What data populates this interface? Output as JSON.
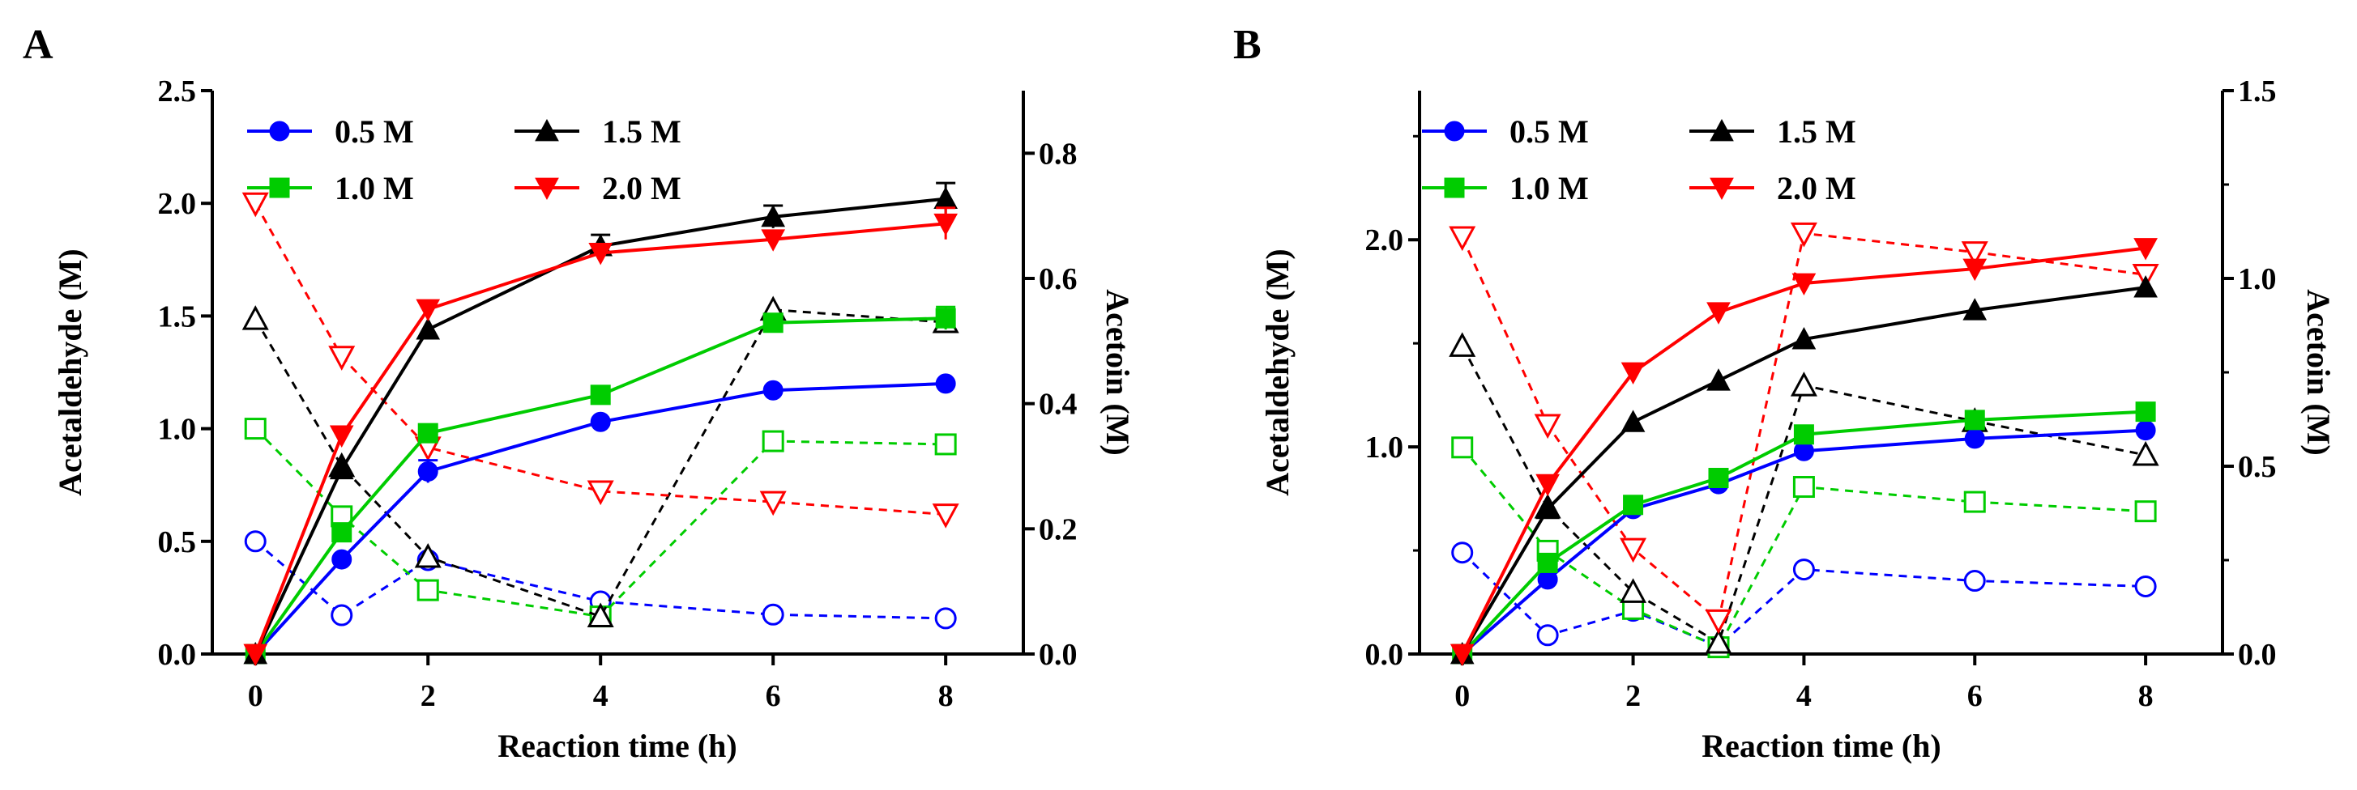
{
  "figure": {
    "colors": {
      "c05": "#0000FF",
      "c10": "#00CC00",
      "c15": "#000000",
      "c20": "#FF0000"
    }
  },
  "chart_data": [
    {
      "panel_label": "A",
      "type": "line",
      "xlabel": "Reaction time (h)",
      "ylabel_left": "Acetaldehyde (M)",
      "ylabel_right": "Acetoin (M)",
      "xlim": [
        -0.5,
        8.9
      ],
      "ylim_left": [
        0,
        2.5
      ],
      "ylim_right": [
        0,
        0.9
      ],
      "x_ticks": [
        "0",
        "2",
        "4",
        "6",
        "8"
      ],
      "left_ticks": [
        "0.0",
        "0.5",
        "1.0",
        "1.5",
        "2.0",
        "2.5"
      ],
      "right_ticks": [
        "0.0",
        "0.2",
        "0.4",
        "0.6",
        "0.8"
      ],
      "legend": {
        "placement": "top-left",
        "entries": [
          {
            "key": "c05",
            "label": "0.5 M"
          },
          {
            "key": "c15",
            "label": "1.5 M"
          },
          {
            "key": "c10",
            "label": "1.0 M"
          },
          {
            "key": "c20",
            "label": "2.0 M"
          }
        ]
      },
      "acetaldehyde_series": [
        {
          "name": "0.5 M",
          "key": "c05",
          "marker": "circle",
          "x": [
            0,
            1,
            2,
            4,
            6,
            8
          ],
          "y": [
            0,
            0.42,
            0.81,
            1.03,
            1.17,
            1.2
          ],
          "err": [
            0,
            0,
            0.05,
            0,
            0,
            0
          ]
        },
        {
          "name": "1.0 M",
          "key": "c10",
          "marker": "square",
          "x": [
            0,
            1,
            2,
            4,
            6,
            8
          ],
          "y": [
            0,
            0.54,
            0.98,
            1.15,
            1.47,
            1.49
          ],
          "err": [
            0,
            0,
            0,
            0,
            0,
            0.05
          ]
        },
        {
          "name": "1.5 M",
          "key": "c15",
          "marker": "triangle-up",
          "x": [
            0,
            1,
            2,
            4,
            6,
            8
          ],
          "y": [
            0,
            0.82,
            1.44,
            1.81,
            1.94,
            2.02
          ],
          "err": [
            0,
            0,
            0,
            0.05,
            0.05,
            0.07
          ]
        },
        {
          "name": "2.0 M",
          "key": "c20",
          "marker": "triangle-down",
          "x": [
            0,
            1,
            2,
            4,
            6,
            8
          ],
          "y": [
            0,
            0.97,
            1.53,
            1.78,
            1.84,
            1.91
          ],
          "err": [
            0,
            0,
            0,
            0,
            0,
            0.07
          ]
        }
      ],
      "acetoin_series": [
        {
          "name": "0.5 M",
          "key": "c05",
          "marker": "circle-open",
          "x": [
            0,
            1,
            2,
            4,
            6,
            8
          ],
          "y": [
            0.18,
            0.062,
            0.15,
            0.084,
            0.063,
            0.057
          ]
        },
        {
          "name": "1.0 M",
          "key": "c10",
          "marker": "square-open",
          "x": [
            0,
            1,
            2,
            4,
            6,
            8
          ],
          "y": [
            0.36,
            0.22,
            0.102,
            0.06,
            0.34,
            0.335
          ]
        },
        {
          "name": "1.5 M",
          "key": "c15",
          "marker": "triangle-up-open",
          "x": [
            0,
            1,
            2,
            4,
            6,
            8
          ],
          "y": [
            0.535,
            0.3,
            0.155,
            0.06,
            0.55,
            0.53
          ]
        },
        {
          "name": "2.0 M",
          "key": "c20",
          "marker": "triangle-down-open",
          "x": [
            0,
            1,
            2,
            4,
            6,
            8
          ],
          "y": [
            0.72,
            0.475,
            0.33,
            0.26,
            0.243,
            0.223
          ]
        }
      ]
    },
    {
      "panel_label": "B",
      "type": "line",
      "xlabel": "Reaction time (h)",
      "ylabel_left": "Acetaldehyde (M)",
      "ylabel_right": "Acetoin (M)",
      "xlim": [
        -0.5,
        8.9
      ],
      "ylim_left": [
        0,
        2.72
      ],
      "ylim_right": [
        0,
        1.5
      ],
      "x_ticks": [
        "0",
        "2",
        "4",
        "6",
        "8"
      ],
      "left_ticks": [
        "0.0",
        "1.0",
        "2.0"
      ],
      "right_ticks": [
        "0.0",
        "0.5",
        "1.0",
        "1.5"
      ],
      "legend": {
        "placement": "top-left",
        "entries": [
          {
            "key": "c05",
            "label": "0.5 M"
          },
          {
            "key": "c15",
            "label": "1.5 M"
          },
          {
            "key": "c10",
            "label": "1.0 M"
          },
          {
            "key": "c20",
            "label": "2.0 M"
          }
        ]
      },
      "acetaldehyde_series": [
        {
          "name": "0.5 M",
          "key": "c05",
          "marker": "circle",
          "x": [
            0,
            1,
            2,
            3,
            4,
            6,
            8
          ],
          "y": [
            0,
            0.36,
            0.7,
            0.82,
            0.98,
            1.04,
            1.08
          ],
          "err": [
            0,
            0,
            0,
            0,
            0,
            0,
            0
          ]
        },
        {
          "name": "1.0 M",
          "key": "c10",
          "marker": "square",
          "x": [
            0,
            1,
            2,
            3,
            4,
            6,
            8
          ],
          "y": [
            0,
            0.44,
            0.72,
            0.85,
            1.06,
            1.13,
            1.17
          ],
          "err": [
            0,
            0,
            0,
            0,
            0,
            0,
            0
          ]
        },
        {
          "name": "1.5 M",
          "key": "c15",
          "marker": "triangle-up",
          "x": [
            0,
            1,
            2,
            3,
            4,
            6,
            8
          ],
          "y": [
            0,
            0.7,
            1.12,
            1.32,
            1.52,
            1.66,
            1.77
          ],
          "err": [
            0,
            0,
            0,
            0,
            0,
            0,
            0
          ]
        },
        {
          "name": "2.0 M",
          "key": "c20",
          "marker": "triangle-down",
          "x": [
            0,
            1,
            2,
            3,
            4,
            6,
            8
          ],
          "y": [
            0,
            0.82,
            1.36,
            1.65,
            1.79,
            1.86,
            1.96
          ],
          "err": [
            0,
            0,
            0,
            0,
            0,
            0,
            0
          ]
        }
      ],
      "acetoin_series": [
        {
          "name": "0.5 M",
          "key": "c05",
          "marker": "circle-open",
          "x": [
            0,
            1,
            2,
            3,
            4,
            6,
            8
          ],
          "y": [
            0.27,
            0.05,
            0.115,
            0.02,
            0.225,
            0.195,
            0.18
          ]
        },
        {
          "name": "1.0 M",
          "key": "c10",
          "marker": "square-open",
          "x": [
            0,
            1,
            2,
            3,
            4,
            6,
            8
          ],
          "y": [
            0.55,
            0.275,
            0.12,
            0.018,
            0.445,
            0.405,
            0.38
          ]
        },
        {
          "name": "1.5 M",
          "key": "c15",
          "marker": "triangle-up-open",
          "x": [
            0,
            1,
            2,
            3,
            4,
            6,
            8
          ],
          "y": [
            0.82,
            0.39,
            0.165,
            0.03,
            0.715,
            0.62,
            0.53
          ]
        },
        {
          "name": "2.0 M",
          "key": "c20",
          "marker": "triangle-down-open",
          "x": [
            0,
            1,
            2,
            3,
            4,
            6,
            8
          ],
          "y": [
            1.11,
            0.61,
            0.28,
            0.09,
            1.12,
            1.07,
            1.01
          ]
        }
      ]
    }
  ]
}
